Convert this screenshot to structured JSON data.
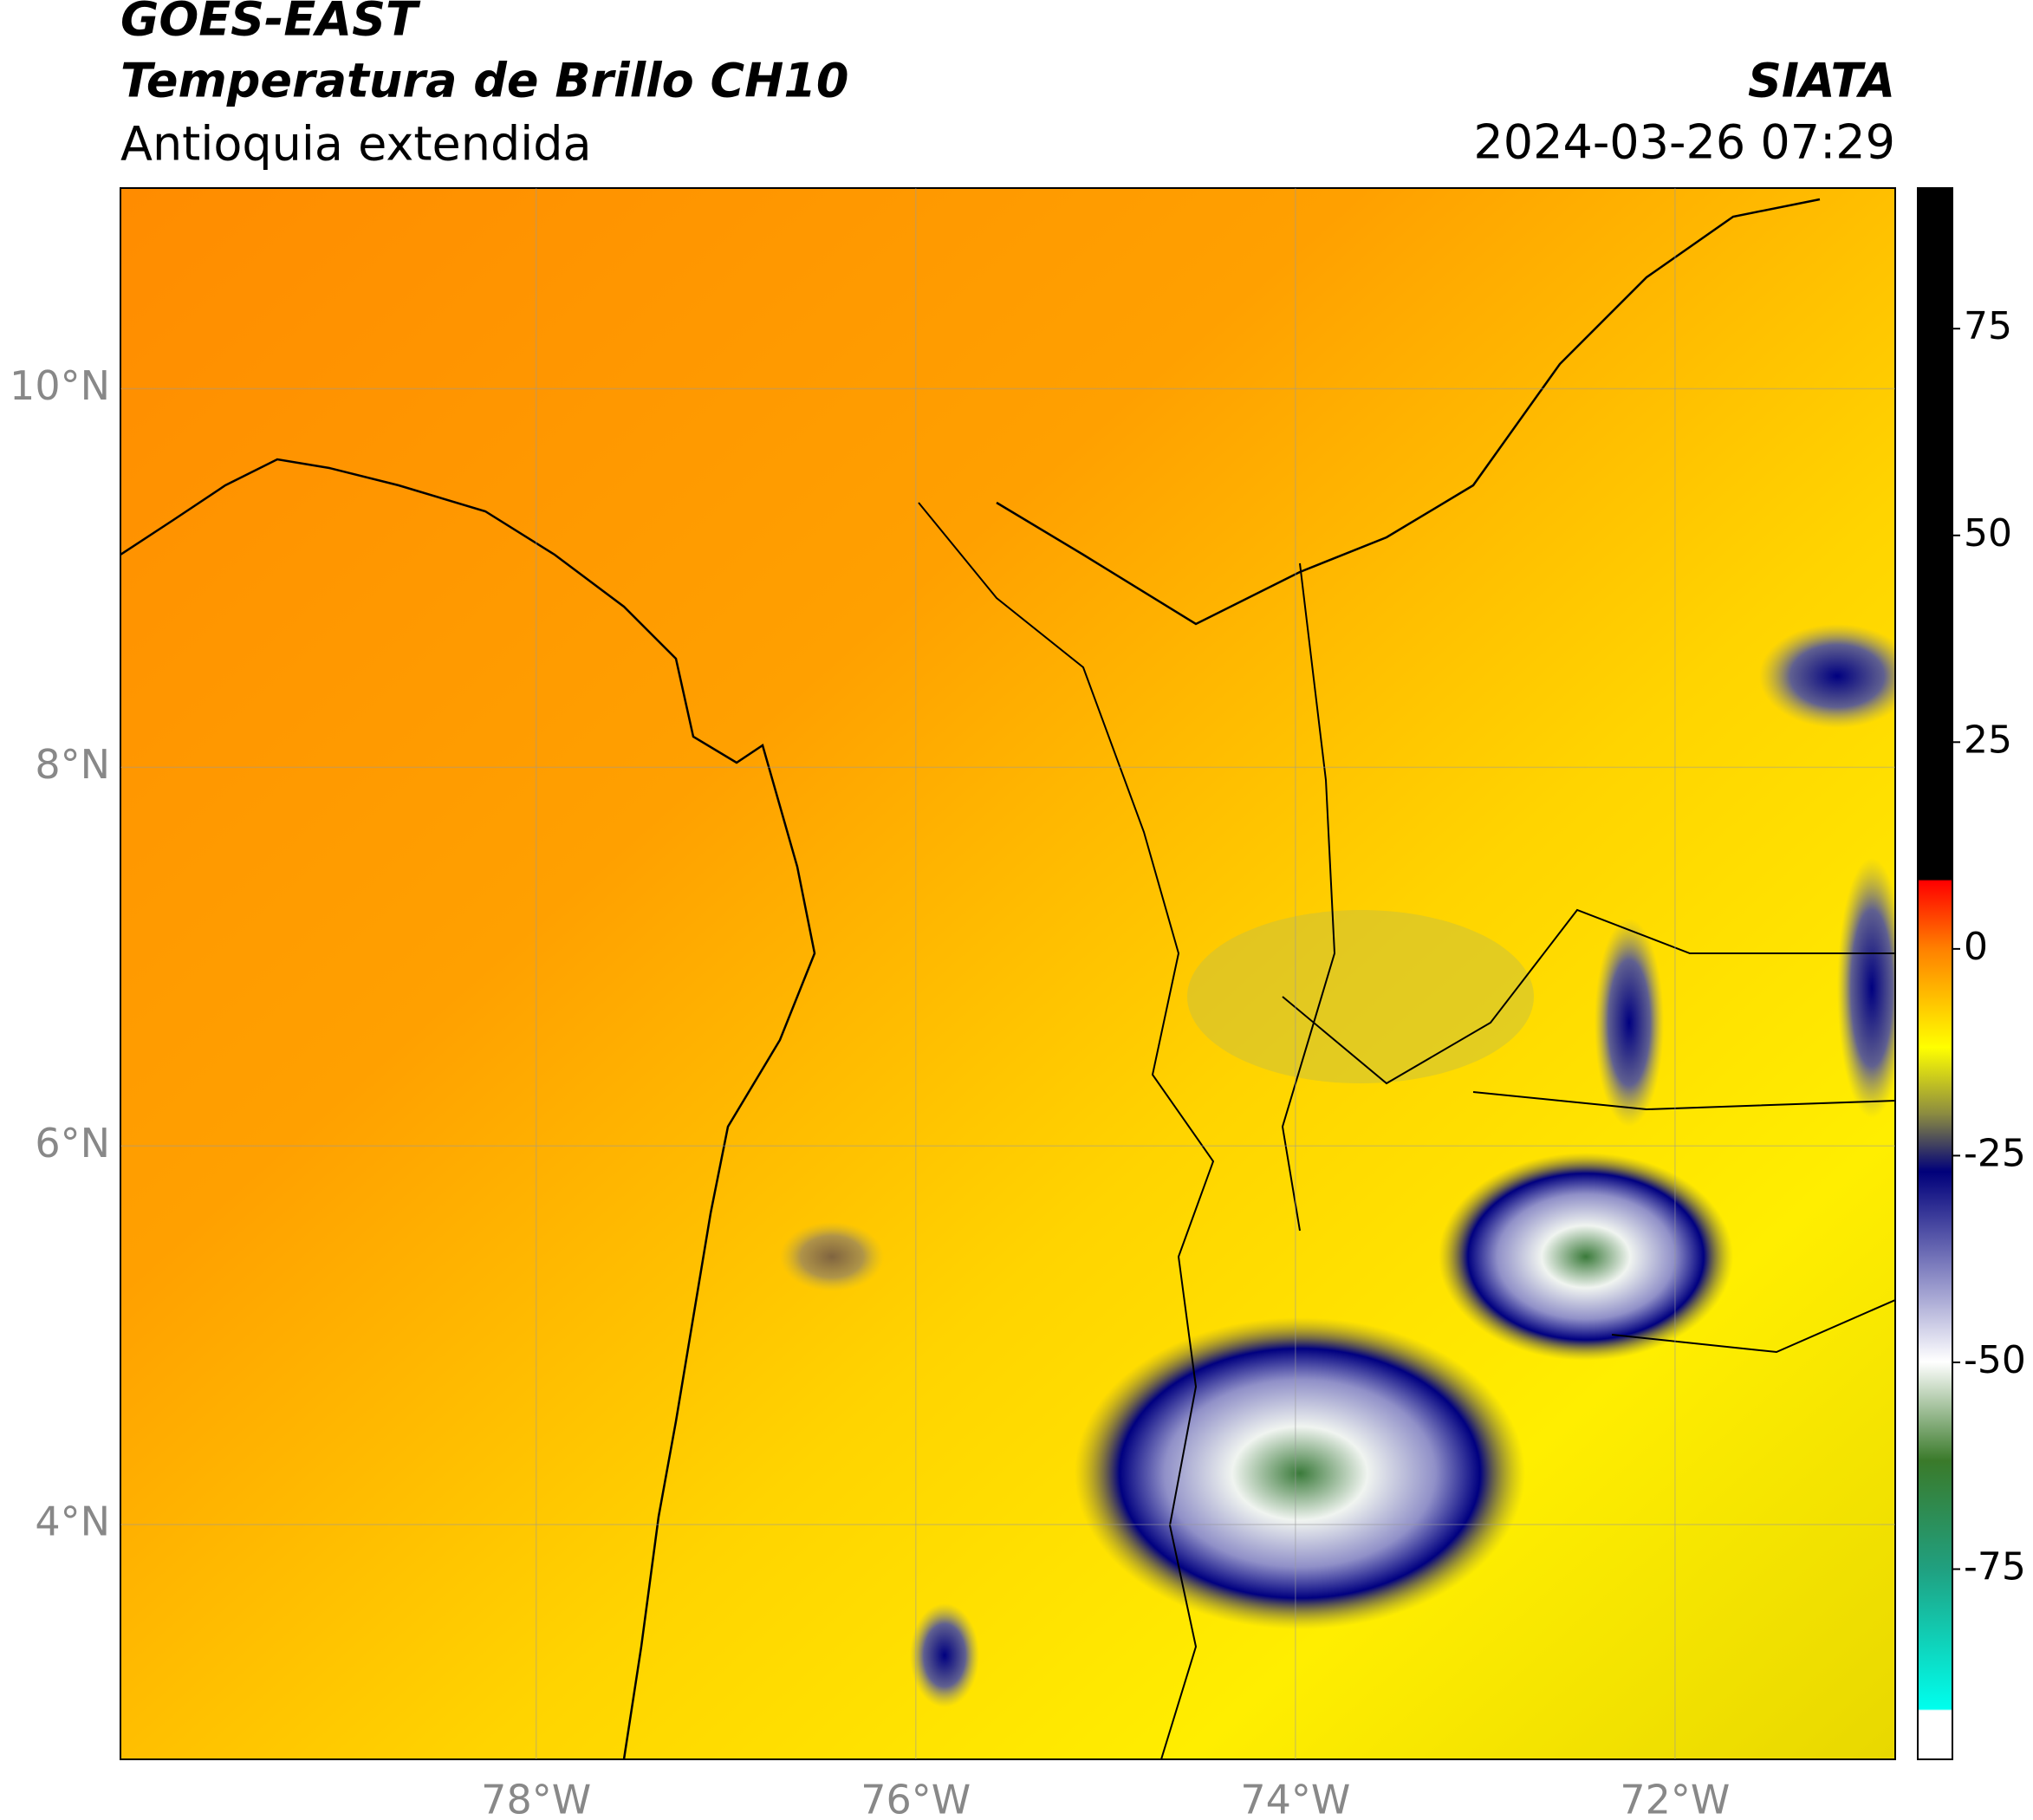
{
  "header": {
    "title": "GOES-EAST",
    "subtitle": "Temperatura de Brillo CH10",
    "region": "Antioquia extendida",
    "source": "SIATA",
    "datetime": "2024-03-26 07:29"
  },
  "map": {
    "xlim": [
      -80.19,
      -70.84
    ],
    "ylim": [
      2.76,
      11.06
    ],
    "xticks": [
      {
        "value": -78,
        "label": "78°W"
      },
      {
        "value": -76,
        "label": "76°W"
      },
      {
        "value": -74,
        "label": "74°W"
      },
      {
        "value": -72,
        "label": "72°W"
      }
    ],
    "yticks": [
      {
        "value": 10,
        "label": "10°N"
      },
      {
        "value": 8,
        "label": "8°N"
      },
      {
        "value": 6,
        "label": "6°N"
      },
      {
        "value": 4,
        "label": "4°N"
      }
    ],
    "grid": true
  },
  "colorbar": {
    "lim": [
      -98,
      92
    ],
    "ticks": [
      75,
      50,
      25,
      0,
      -25,
      -50,
      -75
    ]
  }
}
